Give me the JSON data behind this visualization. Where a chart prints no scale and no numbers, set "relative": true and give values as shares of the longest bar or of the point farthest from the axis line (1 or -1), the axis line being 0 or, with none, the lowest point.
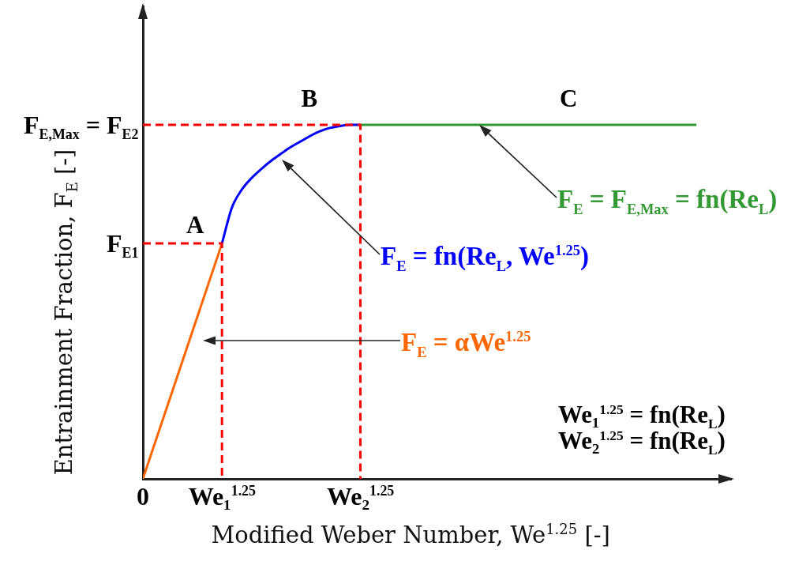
{
  "chart_data": {
    "type": "line",
    "relative": true,
    "xlabel": "Modified Weber Number, We$^{1.25}$ [-]",
    "ylabel": "Entrainment Fraction, F$_{E}$ [-]",
    "categories": [
      "0",
      null,
      null,
      null,
      null,
      null,
      null,
      null,
      "We₁$^{1.25}$",
      null,
      null,
      null,
      null,
      null,
      null,
      null,
      null,
      null,
      null,
      null,
      null,
      null,
      "We₂$^{1.25}$",
      null,
      null,
      null,
      null,
      null,
      null,
      null,
      null,
      null,
      null,
      null,
      null,
      null,
      null,
      null,
      null,
      null,
      null,
      null,
      null,
      null,
      null,
      null,
      null,
      null,
      null,
      null,
      null,
      null,
      null,
      null,
      null,
      null,
      null
    ],
    "series": [
      {
        "color": "#ff6600",
        "x": [
          "0",
          "We₁$^{1.25}$"
        ],
        "values": [
          0,
          0.665
        ]
      },
      {
        "color": "#0000ff",
        "values": [
          null,
          null,
          null,
          null,
          null,
          null,
          null,
          null,
          0.665,
          0.766,
          0.817,
          0.85,
          0.876,
          0.899,
          0.919,
          0.938,
          0.954,
          0.97,
          0.983,
          0.992,
          0.997,
          1,
          1,
          null,
          null,
          null,
          null,
          null,
          null,
          null,
          null,
          null,
          null,
          null,
          null,
          null,
          null,
          null,
          null,
          null,
          null,
          null,
          null,
          null,
          null,
          null,
          null,
          null,
          null,
          null,
          null,
          null,
          null,
          null,
          null,
          null,
          null
        ]
      },
      {
        "color": "#339933",
        "values": [
          null,
          null,
          null,
          null,
          null,
          null,
          null,
          null,
          null,
          null,
          null,
          null,
          null,
          null,
          null,
          null,
          null,
          null,
          null,
          null,
          null,
          null,
          1,
          1,
          1,
          1,
          1,
          1,
          1,
          1,
          1,
          1,
          1,
          1,
          1,
          1,
          1,
          1,
          1,
          1,
          1,
          1,
          1,
          1,
          1,
          1,
          1,
          1,
          1,
          1,
          1,
          1,
          1,
          1,
          1,
          1,
          1
        ]
      },
      {
        "color": "#ff0000",
        "line_style": "dashed",
        "x": [
          "0",
          "We₂$^{1.25}$",
          "We₂$^{1.25}$"
        ],
        "values": [
          1,
          1,
          0
        ]
      },
      {
        "color": "#ff0000",
        "line_style": "dashed",
        "x": [
          "0",
          "We₁$^{1.25}$",
          "We₁$^{1.25}$"
        ],
        "values": [
          0.665,
          0.665,
          0
        ]
      }
    ],
    "annotations": [
      {
        "text": "F$_{E,Max}$ = F$_{E2}$",
        "x": "0",
        "y": 1
      },
      {
        "text": "F$_{E1}$",
        "x": "0",
        "y": 0.665
      },
      "A",
      "B",
      "C",
      "F$_{E}$ = fn(Re$_{L}$, We$^{1.25}$)",
      "F$_{E}$ = F$_{E,Max}$ = fn(Re$_{L}$)",
      "F$_{E}$ = αWe$^{1.25}$",
      "We₁$^{1.25}$ = fn(Re$_{L}$)",
      "We₂$^{1.25}$ = fn(Re$_{L}$)"
    ]
  }
}
